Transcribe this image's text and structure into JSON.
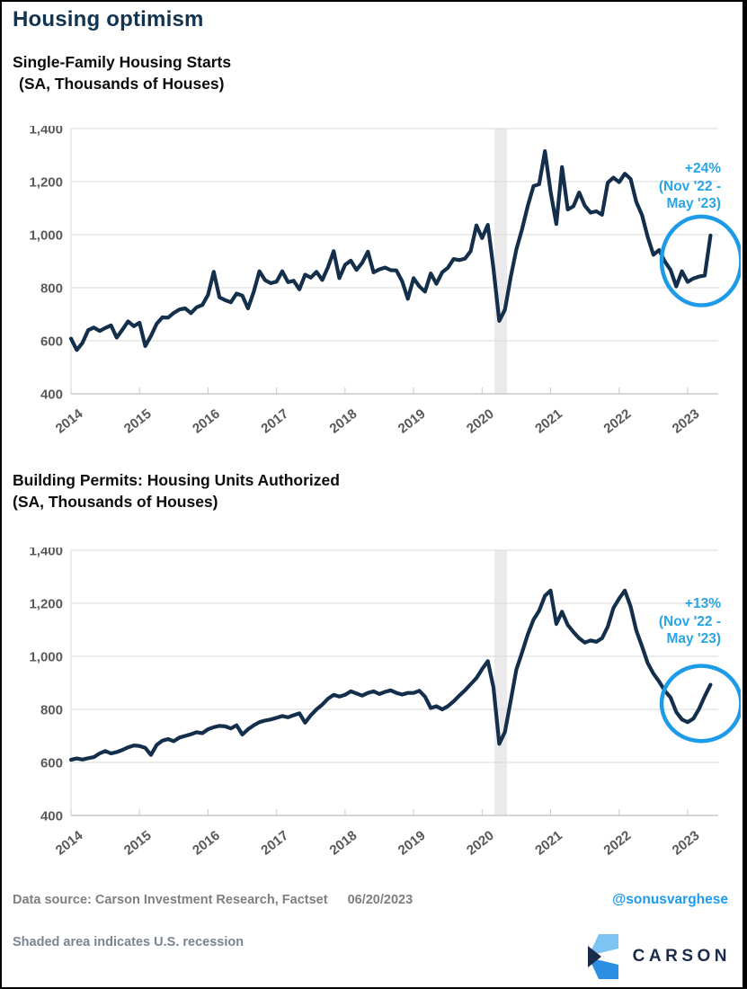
{
  "page": {
    "title": "Housing optimism"
  },
  "colors": {
    "title": "#14334F",
    "line": "#132F4B",
    "annotation_blue": "#29A4E4",
    "circle_blue": "#1E9BE8",
    "handle_blue": "#1C9BF0",
    "grid": "#D9D9D9",
    "axis_labels": "#595959",
    "footer_gray": "#7F7F7F",
    "note_gray": "#7A8590",
    "recession_band": "#EAEAEA",
    "logo_navy": "#1B2B4A",
    "logo_light_blue": "#7EC4F2",
    "logo_mid_blue": "#2D8FE2"
  },
  "chart_data": [
    {
      "type": "line",
      "title": "Single-Family Housing Starts",
      "subtitle": "(SA, Thousands of Houses)",
      "frequency": "monthly",
      "x_start": "2014-01",
      "x_end": "2023-05",
      "ylim": [
        400,
        1400
      ],
      "y_ticks": [
        "400",
        "600",
        "800",
        "1,000",
        "1,200",
        "1,400"
      ],
      "x_tick_labels": [
        "2014",
        "2015",
        "2016",
        "2017",
        "2018",
        "2019",
        "2020",
        "2021",
        "2022",
        "2023"
      ],
      "grid": "horizontal",
      "legend": "none",
      "line_color": "#132F4B",
      "recession_band": {
        "from_month_index": 74.15,
        "to_month_index": 76.35,
        "note": "U.S. recession 2020",
        "color": "#EAEAEA"
      },
      "annotation": {
        "text": "+24% (Nov '22 - May '23)",
        "lines": [
          "+24%",
          "(Nov '22 -",
          "May '23)"
        ],
        "color": "#29A4E4",
        "circle_color": "#1E9BE8",
        "highlight": "ellipse around Nov 2022 - May 2023 upturn"
      },
      "values": [
        608,
        565,
        592,
        640,
        650,
        637,
        648,
        658,
        612,
        642,
        673,
        655,
        668,
        580,
        618,
        664,
        688,
        687,
        705,
        718,
        722,
        704,
        726,
        735,
        773,
        860,
        764,
        753,
        745,
        778,
        770,
        722,
        785,
        862,
        828,
        817,
        823,
        862,
        821,
        826,
        794,
        849,
        838,
        860,
        829,
        877,
        938,
        836,
        886,
        902,
        867,
        894,
        936,
        858,
        869,
        876,
        866,
        865,
        824,
        758,
        836,
        805,
        785,
        854,
        815,
        858,
        875,
        908,
        904,
        910,
        938,
        1035,
        987,
        1037,
        871,
        675,
        717,
        839,
        944,
        1021,
        1108,
        1183,
        1190,
        1315,
        1162,
        1040,
        1255,
        1095,
        1107,
        1159,
        1109,
        1083,
        1088,
        1075,
        1196,
        1215,
        1198,
        1230,
        1210,
        1124,
        1074,
        992,
        924,
        942,
        899,
        867,
        805,
        862,
        822,
        835,
        842,
        846,
        997
      ]
    },
    {
      "type": "line",
      "title": "Building Permits: Housing Units Authorized",
      "subtitle": "(SA, Thousands of Houses)",
      "frequency": "monthly",
      "x_start": "2014-01",
      "x_end": "2023-05",
      "ylim": [
        400,
        1400
      ],
      "y_ticks": [
        "400",
        "600",
        "800",
        "1,000",
        "1,200",
        "1,400"
      ],
      "x_tick_labels": [
        "2014",
        "2015",
        "2016",
        "2017",
        "2018",
        "2019",
        "2020",
        "2021",
        "2022",
        "2023"
      ],
      "grid": "horizontal",
      "legend": "none",
      "line_color": "#132F4B",
      "recession_band": {
        "from_month_index": 74.15,
        "to_month_index": 76.35,
        "note": "U.S. recession 2020",
        "color": "#EAEAEA"
      },
      "annotation": {
        "text": "+13% (Nov '22 - May '23)",
        "lines": [
          "+13%",
          "(Nov '22 -",
          "May '23)"
        ],
        "color": "#29A4E4",
        "circle_color": "#1E9BE8",
        "highlight": "ellipse around Nov 2022 - May 2023 upturn"
      },
      "values": [
        610,
        615,
        611,
        616,
        620,
        634,
        643,
        634,
        639,
        647,
        657,
        664,
        662,
        655,
        628,
        666,
        682,
        688,
        680,
        694,
        700,
        706,
        714,
        710,
        725,
        733,
        738,
        736,
        728,
        740,
        705,
        725,
        740,
        752,
        758,
        762,
        768,
        775,
        770,
        778,
        785,
        750,
        778,
        800,
        818,
        840,
        855,
        848,
        855,
        868,
        860,
        852,
        862,
        868,
        858,
        866,
        872,
        862,
        856,
        862,
        862,
        870,
        848,
        805,
        812,
        800,
        812,
        830,
        852,
        872,
        895,
        918,
        952,
        982,
        882,
        670,
        715,
        832,
        950,
        1015,
        1082,
        1138,
        1172,
        1228,
        1248,
        1122,
        1168,
        1118,
        1092,
        1068,
        1052,
        1060,
        1055,
        1068,
        1112,
        1182,
        1218,
        1248,
        1188,
        1098,
        1038,
        975,
        935,
        905,
        870,
        845,
        790,
        762,
        752,
        765,
        802,
        850,
        893
      ]
    }
  ],
  "footer": {
    "source_label": "Data source: Carson Investment Research, Factset",
    "date": "06/20/2023",
    "handle": "@sonusvarghese",
    "note": "Shaded area indicates U.S. recession",
    "logo_text": "CARSON"
  }
}
